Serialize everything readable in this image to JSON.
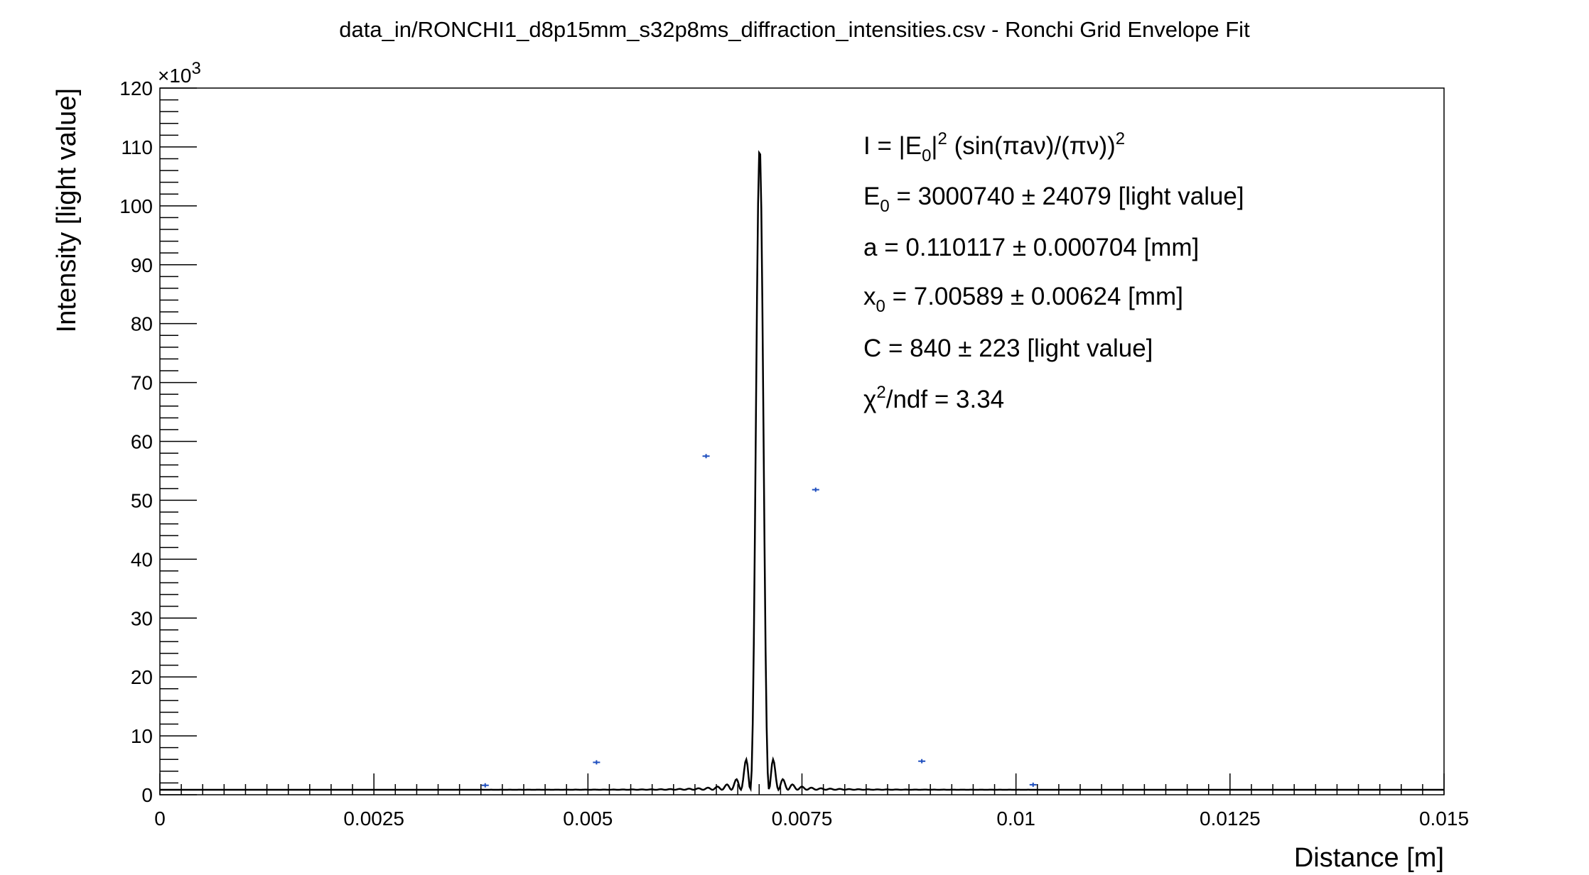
{
  "chart_data": {
    "type": "line",
    "title": "data_in/RONCHI1_d8p15mm_s32p8ms_diffraction_intensities.csv - Ronchi Grid Envelope Fit",
    "xlabel": "Distance [m]",
    "ylabel": "Intensity [light value]",
    "y_exponent_label": "×10",
    "y_exponent_power": "3",
    "xlim": [
      0,
      0.015
    ],
    "ylim": [
      0,
      120
    ],
    "x_ticks": [
      0,
      0.0025,
      0.005,
      0.0075,
      0.01,
      0.0125,
      0.015
    ],
    "x_tick_labels": [
      "0",
      "0.0025",
      "0.005",
      "0.0075",
      "0.01",
      "0.0125",
      "0.015"
    ],
    "y_ticks": [
      0,
      10,
      20,
      30,
      40,
      50,
      60,
      70,
      80,
      90,
      100,
      110,
      120
    ],
    "y_tick_labels": [
      "0",
      "10",
      "20",
      "30",
      "40",
      "50",
      "60",
      "70",
      "80",
      "90",
      "100",
      "110",
      "120"
    ],
    "grid": false,
    "legend": "none",
    "fit_model": {
      "E0": 3000740,
      "a_mm": 0.110117,
      "x0_mm": 7.00589,
      "C": 840
    },
    "series": [
      {
        "kind": "data points",
        "color": "#1f4fbf",
        "x": [
          0.0038,
          0.0051,
          0.00638,
          0.00766,
          0.0089,
          0.0102
        ],
        "y": [
          1.6,
          5.5,
          57.5,
          51.8,
          5.7,
          1.7
        ]
      }
    ],
    "fit_color": "#000000",
    "fit_params": {
      "formula": {
        "a": "I = |E",
        "b": "0",
        "c": "|",
        "d": "2",
        "e": " (sin(πaν)/(πν))",
        "f": "2"
      },
      "e0": {
        "a": "E",
        "b": "0",
        "c": " = 3000740 ± 24079 [light value]"
      },
      "a": "a = 0.110117 ± 0.000704 [mm]",
      "x0": {
        "a": "x",
        "b": "0",
        "c": " = 7.00589 ± 0.00624 [mm]"
      },
      "c": "C = 840 ± 223 [light value]",
      "chi": {
        "a": "χ",
        "b": "2",
        "c": "/ndf = 3.34"
      }
    }
  }
}
